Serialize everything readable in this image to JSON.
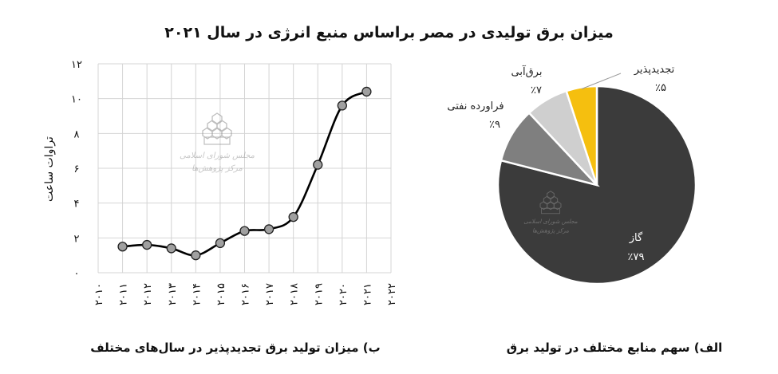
{
  "title": "میزان برق تولیدی در مصر براساس منبع انرژی در سال ۲۰۲۱",
  "chart_data": [
    {
      "type": "line",
      "caption": "ب) میزان تولید برق تجدیدپذیر در سال‌های مختلف",
      "ylabel": "تراوات ساعت",
      "ylim": [
        0,
        12
      ],
      "y_ticks": [
        "۰",
        "۲",
        "۴",
        "۶",
        "۸",
        "۱۰",
        "۱۲"
      ],
      "x": [
        "۲۰۱۰",
        "۲۰۱۱",
        "۲۰۱۲",
        "۲۰۱۳",
        "۲۰۱۴",
        "۲۰۱۵",
        "۲۰۱۶",
        "۲۰۱۷",
        "۲۰۱۸",
        "۲۰۱۹",
        "۲۰۲۰",
        "۲۰۲۱",
        "۲۰۲۲"
      ],
      "values": [
        null,
        1.5,
        1.6,
        1.4,
        1.0,
        1.7,
        2.4,
        2.5,
        3.2,
        6.2,
        9.6,
        10.4,
        null
      ],
      "grid": true,
      "line_color": "#000000",
      "marker_color": "#a0a0a0"
    },
    {
      "type": "pie",
      "caption": "الف) سهم منابع مختلف در تولید برق",
      "slices": [
        {
          "label": "گاز",
          "value_label": "٪۷۹",
          "value": 79,
          "color": "#3b3b3b"
        },
        {
          "label": "فراورده نفتی",
          "value_label": "٪۹",
          "value": 9,
          "color": "#7f7f7f"
        },
        {
          "label": "برق‌آبی",
          "value_label": "٪۷",
          "value": 7,
          "color": "#cfcfcf"
        },
        {
          "label": "تجدیدپذیر",
          "value_label": "٪۵",
          "value": 5,
          "color": "#f5bf0f"
        }
      ]
    }
  ],
  "watermark": {
    "line1": "مجلس شورای اسلامی",
    "line2": "مرکز پژوهش‌ها"
  }
}
